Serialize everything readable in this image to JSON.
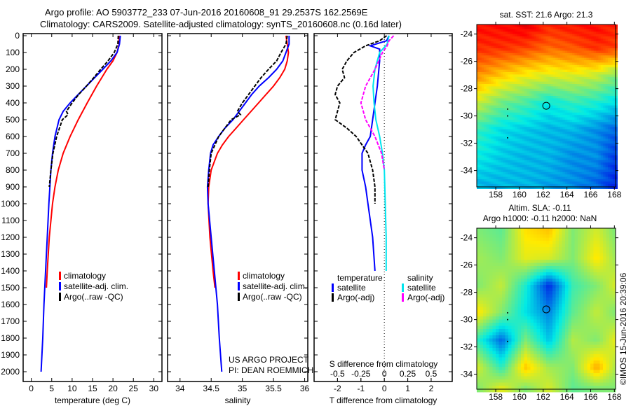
{
  "title": {
    "line1": "Argo profile: AO 5903772_233 07-Jun-2016 20160608_91 29.2537S 162.2569E",
    "line2": "Climatology: CARS2009. Satellite-adjusted climatology: synTS_20160608.nc (0.16d later)"
  },
  "colors": {
    "climatology": "#ff0000",
    "satellite": "#0000ff",
    "argo": "#000000",
    "sal_satellite": "#00e5ee",
    "sal_argo": "#ff00ff"
  },
  "chart_data": [
    {
      "type": "line",
      "name": "temperature-profile",
      "xlabel": "temperature (deg C)",
      "xlim": [
        -2,
        32
      ],
      "ylim": [
        0,
        2000
      ],
      "y_inverted": true,
      "xticks": [
        "0",
        "5",
        "10",
        "15",
        "20",
        "25",
        "30"
      ],
      "yticks": [
        "0",
        "100",
        "200",
        "300",
        "400",
        "500",
        "600",
        "700",
        "800",
        "900",
        "1000",
        "1100",
        "1200",
        "1300",
        "1400",
        "1500",
        "1600",
        "1700",
        "1800",
        "1900",
        "2000"
      ],
      "legend": [
        "climatology",
        "satellite-adj. clim.",
        "Argo(..raw -QC)"
      ],
      "series": [
        {
          "name": "climatology",
          "color": "#ff0000",
          "points": [
            [
              0,
              21.5
            ],
            [
              50,
              21.5
            ],
            [
              100,
              21
            ],
            [
              150,
              20
            ],
            [
              200,
              18.5
            ],
            [
              300,
              16
            ],
            [
              400,
              13.7
            ],
            [
              500,
              11.5
            ],
            [
              600,
              9.5
            ],
            [
              700,
              7.8
            ],
            [
              800,
              6.6
            ],
            [
              900,
              5.8
            ],
            [
              1000,
              5.2
            ],
            [
              1200,
              4.4
            ],
            [
              1400,
              3.9
            ],
            [
              1500,
              3.7
            ]
          ]
        },
        {
          "name": "satellite-adj. clim.",
          "color": "#0000ff",
          "points": [
            [
              0,
              21.8
            ],
            [
              50,
              21.6
            ],
            [
              100,
              21
            ],
            [
              150,
              19.5
            ],
            [
              200,
              17.5
            ],
            [
              250,
              15.5
            ],
            [
              300,
              13.5
            ],
            [
              350,
              11.5
            ],
            [
              400,
              9.5
            ],
            [
              450,
              7.8
            ],
            [
              500,
              6.8
            ],
            [
              600,
              5.8
            ],
            [
              700,
              5.2
            ],
            [
              800,
              4.8
            ],
            [
              1000,
              4.3
            ],
            [
              1200,
              3.9
            ],
            [
              1400,
              3.5
            ],
            [
              1600,
              3.1
            ],
            [
              1800,
              2.8
            ],
            [
              2000,
              2.4
            ]
          ]
        },
        {
          "name": "Argo(..raw -QC)",
          "color": "#000000",
          "dashed": true,
          "points": [
            [
              0,
              21.3
            ],
            [
              50,
              21.2
            ],
            [
              100,
              20.3
            ],
            [
              150,
              18.8
            ],
            [
              200,
              17
            ],
            [
              250,
              15.3
            ],
            [
              300,
              13.5
            ],
            [
              350,
              11.6
            ],
            [
              400,
              10
            ],
            [
              450,
              8.6
            ],
            [
              470,
              9.0
            ],
            [
              500,
              7.6
            ],
            [
              600,
              6.2
            ],
            [
              700,
              5.3
            ],
            [
              800,
              4.8
            ],
            [
              900,
              4.4
            ]
          ]
        }
      ]
    },
    {
      "type": "line",
      "name": "salinity-profile",
      "xlabel": "salinity",
      "xlim": [
        33.8,
        36.05
      ],
      "ylim": [
        0,
        2000
      ],
      "y_inverted": true,
      "xticks": [
        "34",
        "34.5",
        "35",
        "35.5",
        "36"
      ],
      "legend": [
        "climatology",
        "satellite-adj. clim.",
        "Argo(..raw -QC)"
      ],
      "annotation": [
        "US ARGO PROJECT",
        "PI: DEAN ROEMMICH"
      ],
      "series": [
        {
          "name": "climatology",
          "color": "#ff0000",
          "points": [
            [
              0,
              35.7
            ],
            [
              50,
              35.72
            ],
            [
              100,
              35.74
            ],
            [
              150,
              35.72
            ],
            [
              200,
              35.68
            ],
            [
              250,
              35.6
            ],
            [
              300,
              35.5
            ],
            [
              350,
              35.38
            ],
            [
              400,
              35.26
            ],
            [
              450,
              35.14
            ],
            [
              500,
              35.02
            ],
            [
              550,
              34.9
            ],
            [
              600,
              34.78
            ],
            [
              650,
              34.68
            ],
            [
              700,
              34.6
            ],
            [
              800,
              34.5
            ],
            [
              900,
              34.46
            ],
            [
              1000,
              34.45
            ],
            [
              1200,
              34.48
            ],
            [
              1400,
              34.53
            ],
            [
              1500,
              34.56
            ]
          ]
        },
        {
          "name": "satellite-adj. clim.",
          "color": "#0000ff",
          "points": [
            [
              0,
              35.75
            ],
            [
              50,
              35.75
            ],
            [
              100,
              35.7
            ],
            [
              150,
              35.65
            ],
            [
              200,
              35.55
            ],
            [
              250,
              35.42
            ],
            [
              300,
              35.27
            ],
            [
              350,
              35.15
            ],
            [
              400,
              35.05
            ],
            [
              450,
              34.95
            ],
            [
              500,
              34.85
            ],
            [
              550,
              34.72
            ],
            [
              600,
              34.62
            ],
            [
              650,
              34.53
            ],
            [
              700,
              34.49
            ],
            [
              800,
              34.46
            ],
            [
              900,
              34.44
            ],
            [
              1000,
              34.45
            ],
            [
              1200,
              34.5
            ],
            [
              1400,
              34.55
            ],
            [
              1600,
              34.6
            ],
            [
              1800,
              34.63
            ],
            [
              2000,
              34.67
            ]
          ]
        },
        {
          "name": "Argo(..raw -QC)",
          "color": "#000000",
          "dashed": true,
          "points": [
            [
              0,
              35.72
            ],
            [
              50,
              35.7
            ],
            [
              100,
              35.62
            ],
            [
              150,
              35.55
            ],
            [
              200,
              35.42
            ],
            [
              250,
              35.3
            ],
            [
              300,
              35.2
            ],
            [
              350,
              35.1
            ],
            [
              400,
              35.0
            ],
            [
              450,
              34.92
            ],
            [
              470,
              34.97
            ],
            [
              500,
              34.82
            ],
            [
              600,
              34.62
            ],
            [
              700,
              34.5
            ],
            [
              800,
              34.47
            ],
            [
              900,
              34.45
            ]
          ]
        }
      ]
    },
    {
      "type": "line",
      "name": "difference-profile",
      "xlabel": "T difference from climatology",
      "x2label": "S difference from climatology",
      "xlim": [
        -3,
        2.9
      ],
      "ylim": [
        0,
        2000
      ],
      "y_inverted": true,
      "xticks": [
        "-2",
        "-1",
        "0",
        "1",
        "2"
      ],
      "x2ticks": [
        "-0.5",
        "-0.25",
        "0",
        "0.25",
        "0.5"
      ],
      "s_to_t_scale": 4,
      "legend": {
        "temperature_header": "temperature",
        "salinity_header": "salinity",
        "t_items": [
          "satellite",
          "Argo(-adj)"
        ],
        "s_items": [
          "satellite",
          "Argo(-adj)"
        ]
      },
      "series": [
        {
          "name": "T satellite",
          "color": "#0000ff",
          "points": [
            [
              0,
              0.2
            ],
            [
              30,
              0.1
            ],
            [
              60,
              -0.6
            ],
            [
              80,
              -0.2
            ],
            [
              150,
              -0.2
            ],
            [
              300,
              -0.3
            ],
            [
              400,
              -0.4
            ],
            [
              500,
              -0.5
            ],
            [
              600,
              -0.6
            ],
            [
              650,
              -0.8
            ],
            [
              700,
              -0.95
            ],
            [
              800,
              -0.95
            ],
            [
              900,
              -0.8
            ],
            [
              1000,
              -0.7
            ],
            [
              1200,
              -0.5
            ],
            [
              1400,
              -0.4
            ]
          ]
        },
        {
          "name": "T Argo(-adj)",
          "color": "#000000",
          "dashed": true,
          "points": [
            [
              0,
              0.1
            ],
            [
              30,
              -0.2
            ],
            [
              60,
              -0.8
            ],
            [
              100,
              -1.3
            ],
            [
              150,
              -1.6
            ],
            [
              200,
              -1.8
            ],
            [
              250,
              -1.7
            ],
            [
              300,
              -2.0
            ],
            [
              350,
              -2.1
            ],
            [
              400,
              -1.9
            ],
            [
              450,
              -2.0
            ],
            [
              500,
              -2.1
            ],
            [
              550,
              -1.6
            ],
            [
              600,
              -1.2
            ],
            [
              650,
              -0.95
            ],
            [
              700,
              -0.7
            ],
            [
              800,
              -0.5
            ],
            [
              900,
              -0.4
            ],
            [
              1000,
              -0.4
            ]
          ]
        },
        {
          "name": "S satellite",
          "color": "#00e5ee",
          "salinity": true,
          "points": [
            [
              0,
              0.05
            ],
            [
              50,
              0.03
            ],
            [
              100,
              -0.05
            ],
            [
              200,
              -0.1
            ],
            [
              300,
              -0.12
            ],
            [
              400,
              -0.11
            ],
            [
              500,
              -0.09
            ],
            [
              600,
              -0.05
            ],
            [
              700,
              -0.02
            ],
            [
              800,
              0
            ],
            [
              1000,
              0.01
            ],
            [
              1200,
              0.02
            ],
            [
              1400,
              0.02
            ]
          ]
        },
        {
          "name": "S Argo(-adj)",
          "color": "#ff00ff",
          "dashed": true,
          "salinity": true,
          "points": [
            [
              0,
              0.1
            ],
            [
              30,
              0.05
            ],
            [
              60,
              0.03
            ],
            [
              100,
              -0.02
            ],
            [
              200,
              -0.1
            ],
            [
              300,
              -0.2
            ],
            [
              400,
              -0.25
            ],
            [
              500,
              -0.2
            ],
            [
              600,
              -0.1
            ],
            [
              700,
              -0.03
            ],
            [
              800,
              0
            ]
          ]
        }
      ]
    },
    {
      "type": "heatmap",
      "name": "sst-map",
      "title": "sat. SST: 21.6 Argo: 21.3",
      "lon_range": [
        156.4,
        168.1
      ],
      "lat_range": [
        -35.2,
        -23.3
      ],
      "xticks": [
        "158",
        "160",
        "162",
        "164",
        "166",
        "168"
      ],
      "yticks": [
        "-24",
        "-26",
        "-28",
        "-30",
        "-32",
        "-34"
      ],
      "color_range": [
        19.5,
        24.2
      ],
      "grid_lats": [
        -23,
        -25,
        -27,
        -29,
        -31,
        -33,
        -35
      ],
      "grid_lons": [
        156.5,
        158.5,
        160.5,
        162.5,
        164.5,
        166.5,
        168
      ],
      "values": [
        [
          23.6,
          23.6,
          23.8,
          23.5,
          23.6,
          23.6,
          23.5
        ],
        [
          23.4,
          23.4,
          23.3,
          23.1,
          23.2,
          23.4,
          23.3
        ],
        [
          22.9,
          22.6,
          22.4,
          22.3,
          22.3,
          22.2,
          21.9
        ],
        [
          22.2,
          21.8,
          21.6,
          21.3,
          21.5,
          21.4,
          21.2
        ],
        [
          21.5,
          21.2,
          21.1,
          21.0,
          21.0,
          20.8,
          20.6
        ],
        [
          21.3,
          21.1,
          21.0,
          21.0,
          20.8,
          20.8,
          20.4
        ],
        [
          21.0,
          21.0,
          21.0,
          20.9,
          20.8,
          20.6,
          20.3
        ]
      ],
      "float_position": [
        162.2569,
        -29.2537
      ]
    },
    {
      "type": "heatmap",
      "name": "sla-map",
      "title": "Altim. SLA: -0.11",
      "subtitle": "Argo h1000: -0.11 h2000: NaN",
      "lon_range": [
        156.4,
        168.1
      ],
      "lat_range": [
        -35.1,
        -23.3
      ],
      "xticks": [
        "158",
        "160",
        "162",
        "164",
        "166",
        "168"
      ],
      "yticks": [
        "-24",
        "-26",
        "-28",
        "-30",
        "-32",
        "-34"
      ],
      "color_range": [
        -0.3,
        0.3
      ],
      "grid_lats": [
        -23.5,
        -25.5,
        -27.5,
        -29.5,
        -31.5,
        -33.5,
        -35
      ],
      "grid_lons": [
        156.5,
        158.5,
        160.5,
        162.5,
        164.5,
        166.5,
        168
      ],
      "values": [
        [
          0.0,
          -0.02,
          0.08,
          0.1,
          0.0,
          0.05,
          0.0
        ],
        [
          0.02,
          0.0,
          0.06,
          0.05,
          0.0,
          0.08,
          0.02
        ],
        [
          0.0,
          0.04,
          -0.06,
          -0.2,
          -0.04,
          0.0,
          0.05
        ],
        [
          0.08,
          0.0,
          -0.08,
          -0.14,
          -0.02,
          0.04,
          0.0
        ],
        [
          -0.05,
          -0.16,
          0.0,
          -0.1,
          0.03,
          0.0,
          0.06
        ],
        [
          0.05,
          -0.05,
          0.1,
          0.02,
          0.0,
          0.12,
          0.03
        ],
        [
          0.0,
          0.06,
          0.0,
          0.05,
          -0.02,
          0.0,
          0.0
        ]
      ],
      "float_position": [
        162.2569,
        -29.2537
      ]
    }
  ],
  "footer": {
    "credit": "©IMOS 15-Jun-2016 20:39:06"
  }
}
